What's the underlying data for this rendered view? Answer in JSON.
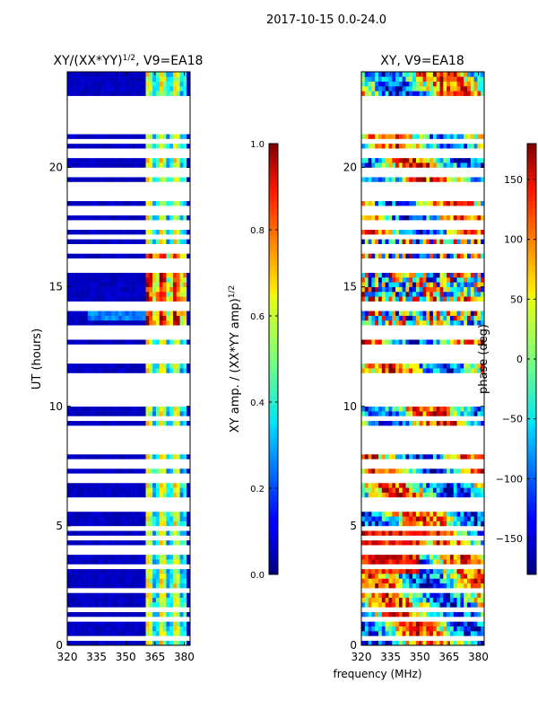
{
  "figure_title": "2017-10-15 0.0-24.0",
  "shared_xlabel": "frequency (MHz)",
  "chart_data": [
    {
      "type": "heatmap",
      "title": "XY/(XX*YY)^1/2, V9=EA18",
      "title_main": "XY/(XX*YY)",
      "title_sup": "1/2",
      "title_tail": ", V9=EA18",
      "xlabel": "frequency (MHz)",
      "ylabel": "UT (hours)",
      "xlim": [
        320,
        383
      ],
      "ylim": [
        0,
        24
      ],
      "xticks": [
        320,
        335,
        350,
        365,
        380
      ],
      "yticks": [
        0,
        5,
        10,
        15,
        20
      ],
      "colorbar": {
        "label_main": "XY amp. / (XX*YY amp)",
        "label_sup": "1/2",
        "range": [
          0.0,
          1.0
        ],
        "ticks": [
          0.0,
          0.2,
          0.4,
          0.6,
          0.8,
          1.0
        ],
        "tick_labels": [
          "0.0",
          "0.2",
          "0.4",
          "0.6",
          "0.8",
          "1.0"
        ]
      },
      "active_band_start_mhz": 360,
      "blanked_hours": [
        0.3,
        1.1,
        1.5,
        2.3,
        3.3,
        4.0,
        4.5,
        4.9,
        5.8,
        6.1,
        7.0,
        7.5,
        7.6,
        8.2,
        8.6,
        9.0,
        9.5,
        10.2,
        10.6,
        11.0,
        11.3,
        12.0,
        12.2,
        12.5,
        13.0,
        13.3,
        14.2,
        15.8,
        16.1,
        16.6,
        17.1,
        17.6,
        18.2,
        18.7,
        19.0,
        19.3,
        19.7,
        19.9,
        20.6,
        21.1,
        21.5,
        21.7,
        21.9,
        22.2,
        22.4,
        22.6,
        22.9
      ]
    },
    {
      "type": "heatmap",
      "title": "XY, V9=EA18",
      "xlabel": "frequency (MHz)",
      "ylabel": "",
      "xlim": [
        320,
        383
      ],
      "ylim": [
        0,
        24
      ],
      "xticks": [
        320,
        335,
        350,
        365,
        380
      ],
      "yticks": [
        0,
        5,
        10,
        15,
        20
      ],
      "colorbar": {
        "label": "phase (deg)",
        "range": [
          -180,
          180
        ],
        "ticks": [
          -150,
          -100,
          -50,
          0,
          50,
          100,
          150
        ],
        "tick_labels": [
          "−150",
          "−100",
          "−50",
          "0",
          "50",
          "100",
          "150"
        ]
      },
      "blanked_hours": [
        0.3,
        1.1,
        1.5,
        2.3,
        3.3,
        4.0,
        4.5,
        4.9,
        5.8,
        6.1,
        7.0,
        7.5,
        7.6,
        8.2,
        8.6,
        9.0,
        9.5,
        10.2,
        10.6,
        11.0,
        11.3,
        12.0,
        12.2,
        12.5,
        13.0,
        13.3,
        14.2,
        15.8,
        16.1,
        16.6,
        17.1,
        17.6,
        18.2,
        18.7,
        19.0,
        19.3,
        19.7,
        19.9,
        20.6,
        21.1,
        21.5,
        21.7,
        21.9,
        22.2,
        22.4,
        22.6,
        22.9
      ]
    }
  ]
}
